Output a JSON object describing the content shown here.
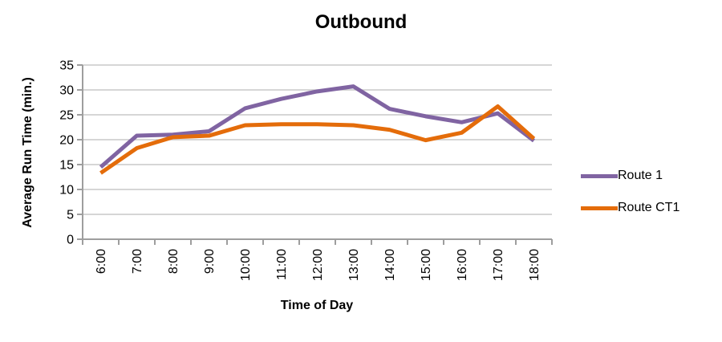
{
  "chart_data": {
    "type": "line",
    "title": "Outbound",
    "xlabel": "Time of Day",
    "ylabel": "Average Run Time (min.)",
    "categories": [
      "6:00",
      "7:00",
      "8:00",
      "9:00",
      "10:00",
      "11:00",
      "12:00",
      "13:00",
      "14:00",
      "15:00",
      "16:00",
      "17:00",
      "18:00"
    ],
    "y_ticks": [
      0,
      5,
      10,
      15,
      20,
      25,
      30,
      35
    ],
    "ylim": [
      0,
      35
    ],
    "grid": "horizontal-only",
    "legend_position": "right-middle",
    "axis_color": "#9e9e9e",
    "gridline_color": "#c9c9c9",
    "series": [
      {
        "name": "Route 1",
        "color": "#8064A2",
        "values": [
          14.5,
          20.8,
          21.0,
          21.7,
          26.3,
          28.2,
          29.7,
          30.7,
          26.2,
          24.7,
          23.5,
          25.3,
          19.8
        ]
      },
      {
        "name": "Route CT1",
        "color": "#E46C0A",
        "values": [
          13.3,
          18.3,
          20.5,
          20.8,
          22.9,
          23.1,
          23.1,
          22.9,
          22.0,
          19.9,
          21.4,
          26.7,
          20.2
        ]
      }
    ]
  }
}
